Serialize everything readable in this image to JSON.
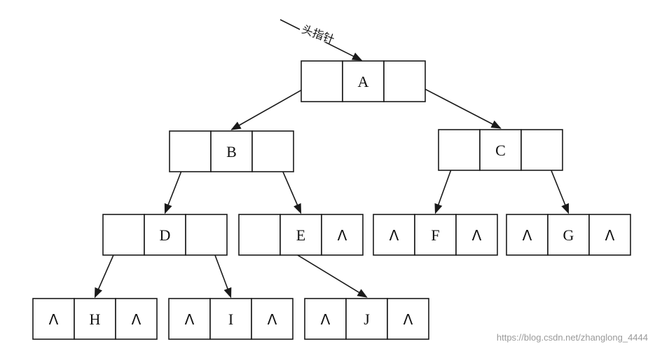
{
  "diagram": {
    "head_pointer_label": "头指针",
    "null_symbol": "Λ",
    "watermark": "https://blog.csdn.net/zhanglong_4444",
    "nodes": [
      {
        "id": "A",
        "value": "A",
        "lchild": "B",
        "rchild": "C"
      },
      {
        "id": "B",
        "value": "B",
        "lchild": "D",
        "rchild": "E"
      },
      {
        "id": "C",
        "value": "C",
        "lchild": "F",
        "rchild": "G"
      },
      {
        "id": "D",
        "value": "D",
        "lchild": "H",
        "rchild": "I"
      },
      {
        "id": "E",
        "value": "E",
        "lchild": "J",
        "rchild": null
      },
      {
        "id": "F",
        "value": "F",
        "lchild": null,
        "rchild": null
      },
      {
        "id": "G",
        "value": "G",
        "lchild": null,
        "rchild": null
      },
      {
        "id": "H",
        "value": "H",
        "lchild": null,
        "rchild": null
      },
      {
        "id": "I",
        "value": "I",
        "lchild": null,
        "rchild": null
      },
      {
        "id": "J",
        "value": "J",
        "lchild": null,
        "rchild": null
      }
    ]
  }
}
